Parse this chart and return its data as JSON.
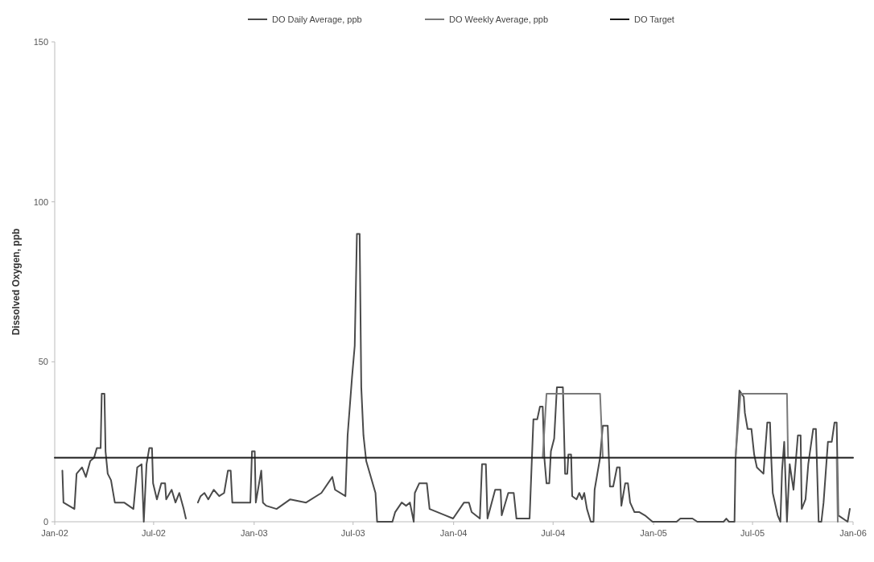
{
  "chart_data": {
    "type": "line",
    "ylabel": "Dissolved Oxygen, ppb",
    "legend": "top",
    "line_style": "solid",
    "grid": false,
    "xlim": [
      "2002-01-01",
      "2006-01-01"
    ],
    "xticks": [
      {
        "value": "2002-01-01",
        "label": "Jan-02"
      },
      {
        "value": "2002-07-01",
        "label": "Jul-02"
      },
      {
        "value": "2003-01-01",
        "label": "Jan-03"
      },
      {
        "value": "2003-07-01",
        "label": "Jul-03"
      },
      {
        "value": "2004-01-01",
        "label": "Jan-04"
      },
      {
        "value": "2004-07-01",
        "label": "Jul-04"
      },
      {
        "value": "2005-01-01",
        "label": "Jan-05"
      },
      {
        "value": "2005-07-01",
        "label": "Jul-05"
      },
      {
        "value": "2006-01-01",
        "label": "Jan-06"
      }
    ],
    "ylim": [
      0,
      150
    ],
    "yticks": [
      0,
      50,
      100,
      150
    ],
    "series": [
      {
        "name": "DO Daily Average, ppb",
        "color": "#4a4a4a",
        "x": [
          "2002-01-15",
          "2002-01-17",
          "2002-02-06",
          "2002-02-10",
          "2002-02-20",
          "2002-02-27",
          "2002-03-07",
          "2002-03-14",
          "2002-03-19",
          "2002-03-26",
          "2002-03-28",
          "2002-04-02",
          "2002-04-04",
          "2002-04-08",
          "2002-04-14",
          "2002-04-21",
          "2002-05-08",
          "2002-05-25",
          "2002-06-01",
          "2002-06-09",
          "2002-06-13",
          "2002-06-18",
          "2002-06-23",
          "2002-06-28",
          "2002-06-30",
          "2002-07-07",
          "2002-07-15",
          "2002-07-22",
          "2002-07-24",
          "2002-08-03",
          "2002-08-10",
          "2002-08-17",
          "2002-08-25",
          "2002-08-29",
          "2002-09-08",
          "2002-09-20",
          "2002-09-25",
          "2002-10-02",
          "2002-10-09",
          "2002-10-19",
          "2002-10-29",
          "2002-11-07",
          "2002-11-14",
          "2002-11-19",
          "2002-11-22",
          "2002-12-25",
          "2002-12-28",
          "2003-01-02",
          "2003-01-04",
          "2003-01-14",
          "2003-01-17",
          "2003-01-23",
          "2003-02-11",
          "2003-03-08",
          "2003-04-06",
          "2003-05-04",
          "2003-05-24",
          "2003-05-29",
          "2003-06-17",
          "2003-06-21",
          "2003-06-29",
          "2003-07-04",
          "2003-07-08",
          "2003-07-13",
          "2003-07-16",
          "2003-07-20",
          "2003-07-25",
          "2003-08-11",
          "2003-08-14",
          "2003-09-11",
          "2003-09-16",
          "2003-09-28",
          "2003-10-06",
          "2003-10-13",
          "2003-10-20",
          "2003-10-22",
          "2003-10-30",
          "2003-11-13",
          "2003-11-18",
          "2003-12-17",
          "2003-12-31",
          "2004-01-20",
          "2004-01-29",
          "2004-02-03",
          "2004-02-18",
          "2004-02-22",
          "2004-02-29",
          "2004-03-03",
          "2004-03-17",
          "2004-03-27",
          "2004-03-29",
          "2004-04-10",
          "2004-04-20",
          "2004-04-25",
          "2004-05-19",
          "2004-05-26",
          "2004-06-02",
          "2004-06-07",
          "2004-06-12",
          "2004-06-15",
          "2004-06-19",
          "2004-06-24",
          "2004-06-27",
          "2004-07-03",
          "2004-07-08",
          "2004-07-15",
          "2004-07-19",
          "2004-07-23",
          "2004-07-27",
          "2004-07-29",
          "2004-08-03",
          "2004-08-05",
          "2004-08-13",
          "2004-08-18",
          "2004-08-23",
          "2004-08-27",
          "2004-09-01",
          "2004-09-08",
          "2004-09-13",
          "2004-09-15",
          "2004-09-20",
          "2004-09-25",
          "2004-09-30",
          "2004-10-09",
          "2004-10-13",
          "2004-10-19",
          "2004-10-26",
          "2004-10-31",
          "2004-11-03",
          "2004-11-10",
          "2004-11-15",
          "2004-11-19",
          "2004-11-27",
          "2004-12-06",
          "2004-12-16",
          "2004-12-30",
          "2005-02-12",
          "2005-02-19",
          "2005-03-03",
          "2005-03-13",
          "2005-03-22",
          "2005-05-09",
          "2005-05-14",
          "2005-05-19",
          "2005-05-29",
          "2005-05-31",
          "2005-06-07",
          "2005-06-15",
          "2005-06-17",
          "2005-06-22",
          "2005-06-29",
          "2005-07-04",
          "2005-07-09",
          "2005-07-21",
          "2005-07-28",
          "2005-08-02",
          "2005-08-04",
          "2005-08-07",
          "2005-08-16",
          "2005-08-21",
          "2005-08-24",
          "2005-08-28",
          "2005-09-02",
          "2005-09-07",
          "2005-09-14",
          "2005-09-22",
          "2005-09-27",
          "2005-09-29",
          "2005-10-06",
          "2005-10-11",
          "2005-10-20",
          "2005-10-25",
          "2005-10-30",
          "2005-11-04",
          "2005-11-08",
          "2005-11-16",
          "2005-11-23",
          "2005-11-28",
          "2005-12-02",
          "2005-12-05",
          "2005-12-22",
          "2005-12-26"
        ],
        "values": [
          16,
          6,
          4,
          15,
          17,
          14,
          19,
          20,
          23,
          23,
          40,
          40,
          22,
          15,
          13,
          6,
          6,
          4,
          17,
          18,
          0,
          18,
          23,
          23,
          12,
          7,
          12,
          12,
          7,
          10,
          6,
          9,
          4,
          1,
          null,
          6,
          8,
          9,
          7,
          10,
          8,
          9,
          16,
          16,
          6,
          6,
          22,
          22,
          6,
          16,
          6,
          5,
          4,
          7,
          6,
          9,
          14,
          10,
          8,
          27,
          45,
          55,
          90,
          90,
          42,
          27,
          19,
          9,
          0,
          0,
          3,
          6,
          5,
          6,
          0,
          9,
          12,
          12,
          4,
          2,
          1,
          6,
          6,
          3,
          1,
          18,
          18,
          1,
          10,
          10,
          2,
          9,
          9,
          1,
          1,
          32,
          32,
          36,
          36,
          20,
          12,
          12,
          22,
          26,
          42,
          42,
          42,
          15,
          15,
          21,
          21,
          8,
          7,
          9,
          7,
          9,
          4,
          0,
          0,
          10,
          15,
          20,
          30,
          30,
          11,
          11,
          17,
          17,
          5,
          12,
          12,
          6,
          3,
          3,
          2,
          0,
          0,
          1,
          1,
          1,
          0,
          0,
          1,
          0,
          0,
          20,
          41,
          39,
          34,
          29,
          29,
          21,
          17,
          15,
          31,
          31,
          21,
          9,
          2,
          0,
          16,
          25,
          0,
          18,
          10,
          27,
          27,
          4,
          7,
          18,
          29,
          29,
          0,
          0,
          6,
          25,
          25,
          31,
          31,
          2,
          0,
          4
        ]
      },
      {
        "name": "DO Weekly Average, ppb",
        "color": "#7a7a7a",
        "x": [
          "2004-06-12",
          "2004-06-19",
          "2004-09-25",
          "2004-09-30",
          "2005-01-01",
          "2005-05-31",
          "2005-06-09",
          "2005-09-02",
          "2005-09-04",
          "2005-12-02",
          "2005-12-04"
        ],
        "values": [
          20,
          40,
          40,
          20,
          null,
          20,
          40,
          40,
          20,
          20,
          0
        ]
      },
      {
        "name": "DO Target",
        "color": "#1a1a1a",
        "x": [
          "2002-01-01",
          "2006-01-01"
        ],
        "values": [
          20,
          20
        ]
      }
    ]
  }
}
